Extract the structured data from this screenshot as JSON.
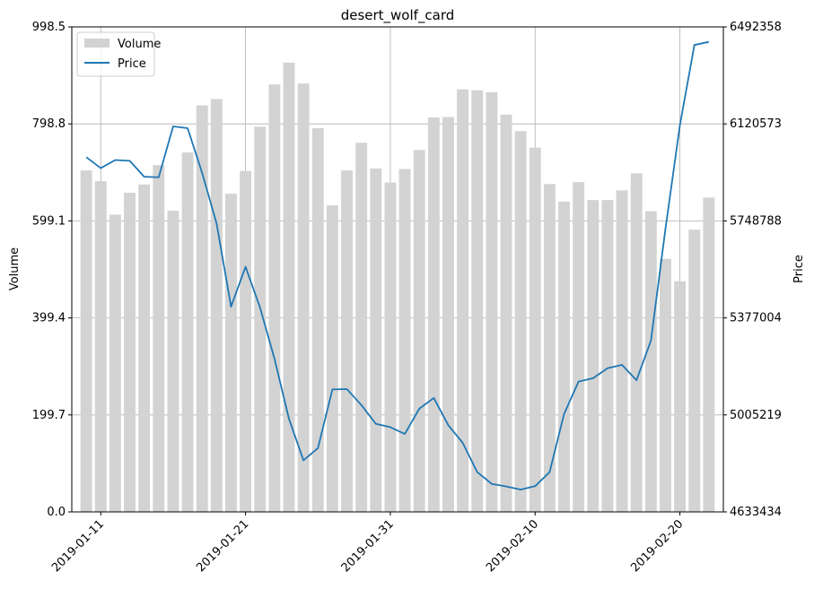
{
  "chart_data": {
    "type": "bar+line",
    "title": "desert_wolf_card",
    "ylabel_left": "Volume",
    "ylabel_right": "Price",
    "x_tick_labels": [
      "2019-01-11",
      "2019-01-21",
      "2019-01-31",
      "2019-02-10",
      "2019-02-20"
    ],
    "x_tick_dates": [
      "2019-01-11",
      "2019-01-21",
      "2019-01-31",
      "2019-02-10",
      "2019-02-20"
    ],
    "x_range": [
      "2019-01-09",
      "2019-02-23"
    ],
    "y_left_ticks": [
      "0.0",
      "199.7",
      "399.4",
      "599.1",
      "798.8",
      "998.5"
    ],
    "y_left_range": [
      0,
      998.5
    ],
    "y_right_ticks": [
      "4633434",
      "5005219",
      "5377004",
      "5748788",
      "6120573",
      "6492358"
    ],
    "y_right_range": [
      4633434,
      6492358
    ],
    "grid": true,
    "legend": {
      "placement": "top-left",
      "entries": [
        {
          "label": "Volume",
          "color": "#d3d3d3",
          "kind": "bar"
        },
        {
          "label": "Price",
          "color": "#1f77b4",
          "kind": "line"
        }
      ]
    },
    "dates": [
      "2019-01-10",
      "2019-01-11",
      "2019-01-12",
      "2019-01-13",
      "2019-01-14",
      "2019-01-15",
      "2019-01-16",
      "2019-01-17",
      "2019-01-18",
      "2019-01-19",
      "2019-01-20",
      "2019-01-21",
      "2019-01-22",
      "2019-01-23",
      "2019-01-24",
      "2019-01-25",
      "2019-01-26",
      "2019-01-27",
      "2019-01-28",
      "2019-01-29",
      "2019-01-30",
      "2019-01-31",
      "2019-02-01",
      "2019-02-02",
      "2019-02-03",
      "2019-02-04",
      "2019-02-05",
      "2019-02-06",
      "2019-02-07",
      "2019-02-08",
      "2019-02-09",
      "2019-02-10",
      "2019-02-11",
      "2019-02-12",
      "2019-02-13",
      "2019-02-14",
      "2019-02-15",
      "2019-02-16",
      "2019-02-17",
      "2019-02-18",
      "2019-02-19",
      "2019-02-20",
      "2019-02-21",
      "2019-02-22"
    ],
    "series": [
      {
        "name": "Volume",
        "type": "bar",
        "color": "#d3d3d3",
        "axis": "left",
        "values": [
          703,
          681,
          612,
          657,
          674,
          714,
          620,
          740,
          837,
          850,
          655,
          702,
          793,
          880,
          925,
          882,
          790,
          631,
          703,
          760,
          707,
          678,
          706,
          745,
          812,
          813,
          870,
          868,
          864,
          818,
          784,
          750,
          675,
          639,
          679,
          642,
          642,
          662,
          697,
          619,
          521,
          475,
          581,
          647
        ]
      },
      {
        "name": "Price",
        "type": "line",
        "color": "#1f77b4",
        "axis": "right",
        "values": [
          5993000,
          5951000,
          5982000,
          5979000,
          5918000,
          5916000,
          6111000,
          6104000,
          5933000,
          5739000,
          5420000,
          5573000,
          5417000,
          5220000,
          4990000,
          4831000,
          4878000,
          5103000,
          5104000,
          5043000,
          4971000,
          4958000,
          4932000,
          5029000,
          5070000,
          4966000,
          4898000,
          4786000,
          4741000,
          4731000,
          4719000,
          4732000,
          4786000,
          5009000,
          5133000,
          5146000,
          5184000,
          5197000,
          5138000,
          5290000,
          5718000,
          6116000,
          6423000,
          6435000
        ]
      }
    ]
  }
}
